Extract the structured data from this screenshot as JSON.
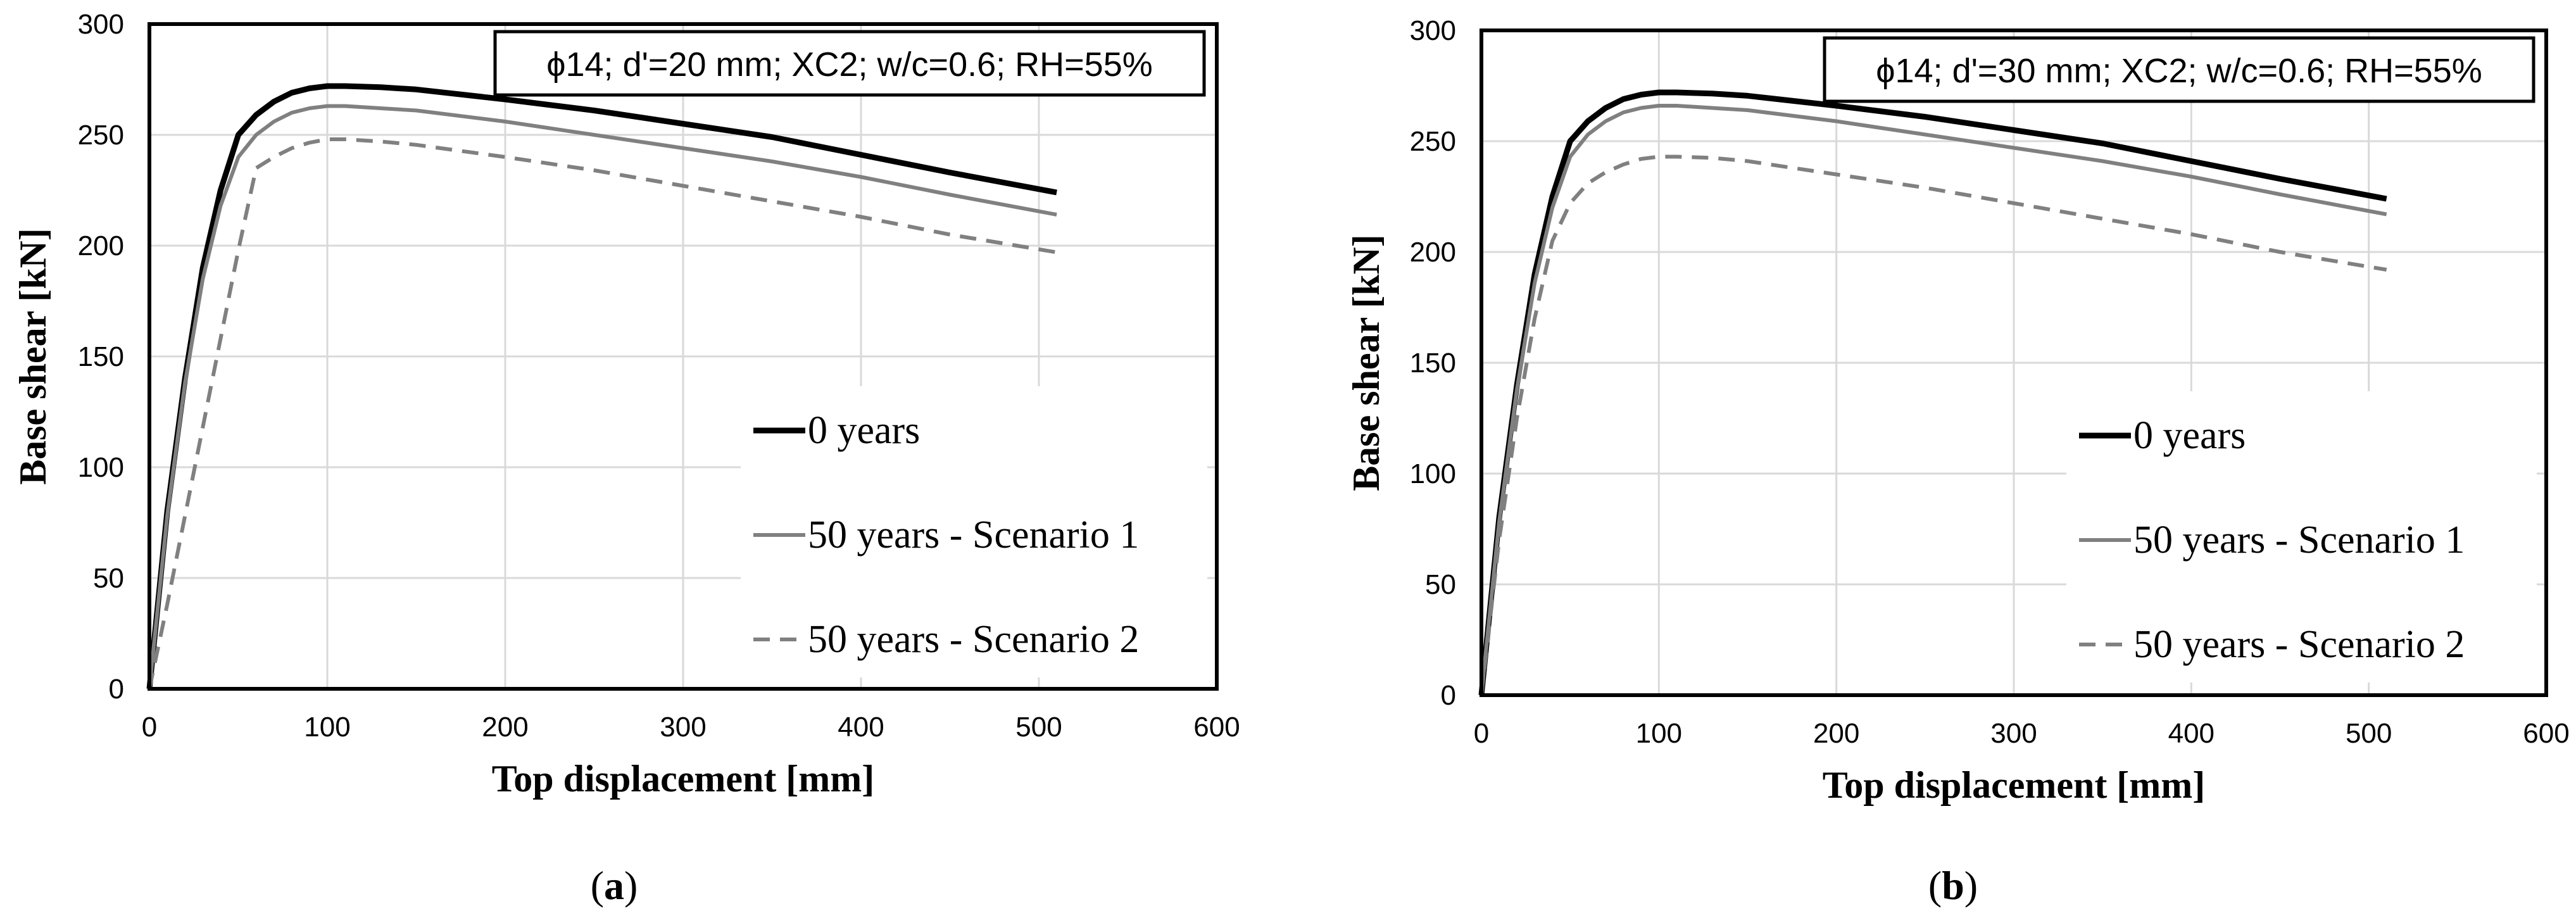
{
  "chart_data": [
    {
      "type": "line",
      "panel": "a",
      "caption_letter": "a",
      "annotation": "ϕ14; d'=20 mm; XC2; w/c=0.6; RH=55%",
      "xlabel": "Top displacement [mm]",
      "ylabel": "Base shear [kN]",
      "xlim": [
        0,
        600
      ],
      "ylim": [
        0,
        300
      ],
      "xticks": [
        0,
        100,
        200,
        300,
        400,
        500,
        600
      ],
      "yticks": [
        0,
        50,
        100,
        150,
        200,
        250,
        300
      ],
      "grid": true,
      "legend_position": "lower-right",
      "series": [
        {
          "name": "0 years",
          "color": "#000000",
          "style": "solid",
          "points": [
            [
              0,
              0
            ],
            [
              10,
              80
            ],
            [
              20,
              140
            ],
            [
              30,
              190
            ],
            [
              40,
              225
            ],
            [
              50,
              250
            ],
            [
              60,
              259
            ],
            [
              70,
              265
            ],
            [
              80,
              269
            ],
            [
              90,
              271
            ],
            [
              100,
              272
            ],
            [
              110,
              272
            ],
            [
              130,
              271.5
            ],
            [
              150,
              270.5
            ],
            [
              200,
              266
            ],
            [
              250,
              261
            ],
            [
              300,
              255
            ],
            [
              350,
              249
            ],
            [
              400,
              241
            ],
            [
              450,
              233
            ],
            [
              510,
              224
            ]
          ]
        },
        {
          "name": "50 years - Scenario 1",
          "color": "#808080",
          "style": "solid",
          "points": [
            [
              0,
              0
            ],
            [
              10,
              78
            ],
            [
              20,
              138
            ],
            [
              30,
              185
            ],
            [
              40,
              218
            ],
            [
              50,
              240
            ],
            [
              60,
              250
            ],
            [
              70,
              256
            ],
            [
              80,
              260
            ],
            [
              90,
              262
            ],
            [
              100,
              263
            ],
            [
              110,
              263
            ],
            [
              130,
              262
            ],
            [
              150,
              261
            ],
            [
              200,
              256
            ],
            [
              250,
              250
            ],
            [
              300,
              244
            ],
            [
              350,
              238
            ],
            [
              400,
              231
            ],
            [
              450,
              223
            ],
            [
              510,
              214
            ]
          ]
        },
        {
          "name": "50 years - Scenario 2",
          "color": "#808080",
          "style": "dashed",
          "points": [
            [
              0,
              0
            ],
            [
              10,
              38
            ],
            [
              20,
              78
            ],
            [
              30,
              118
            ],
            [
              40,
              158
            ],
            [
              50,
              198
            ],
            [
              60,
              235
            ],
            [
              70,
              240
            ],
            [
              80,
              244
            ],
            [
              90,
              246.5
            ],
            [
              100,
              248
            ],
            [
              110,
              248
            ],
            [
              130,
              247
            ],
            [
              150,
              245.5
            ],
            [
              200,
              240
            ],
            [
              250,
              234
            ],
            [
              300,
              227
            ],
            [
              350,
              220
            ],
            [
              400,
              213
            ],
            [
              450,
              205
            ],
            [
              510,
              197
            ]
          ]
        }
      ]
    },
    {
      "type": "line",
      "panel": "b",
      "caption_letter": "b",
      "annotation": "ϕ14; d'=30 mm; XC2; w/c=0.6; RH=55%",
      "xlabel": "Top displacement [mm]",
      "ylabel": "Base shear [kN]",
      "xlim": [
        0,
        600
      ],
      "ylim": [
        0,
        300
      ],
      "xticks": [
        0,
        100,
        200,
        300,
        400,
        500,
        600
      ],
      "yticks": [
        0,
        50,
        100,
        150,
        200,
        250,
        300
      ],
      "grid": true,
      "legend_position": "lower-right",
      "series": [
        {
          "name": "0 years",
          "color": "#000000",
          "style": "solid",
          "points": [
            [
              0,
              0
            ],
            [
              10,
              80
            ],
            [
              20,
              140
            ],
            [
              30,
              190
            ],
            [
              40,
              225
            ],
            [
              50,
              250
            ],
            [
              60,
              259
            ],
            [
              70,
              265
            ],
            [
              80,
              269
            ],
            [
              90,
              271
            ],
            [
              100,
              272
            ],
            [
              110,
              272
            ],
            [
              130,
              271.5
            ],
            [
              150,
              270.5
            ],
            [
              200,
              266
            ],
            [
              250,
              261
            ],
            [
              300,
              255
            ],
            [
              350,
              249
            ],
            [
              400,
              241
            ],
            [
              450,
              233
            ],
            [
              510,
              224
            ]
          ]
        },
        {
          "name": "50 years - Scenario 1",
          "color": "#808080",
          "style": "solid",
          "points": [
            [
              0,
              0
            ],
            [
              10,
              78
            ],
            [
              20,
              138
            ],
            [
              30,
              186
            ],
            [
              40,
              220
            ],
            [
              50,
              243
            ],
            [
              60,
              253
            ],
            [
              70,
              259
            ],
            [
              80,
              263
            ],
            [
              90,
              265
            ],
            [
              100,
              266
            ],
            [
              110,
              266
            ],
            [
              130,
              265
            ],
            [
              150,
              264
            ],
            [
              200,
              259
            ],
            [
              250,
              253
            ],
            [
              300,
              247
            ],
            [
              350,
              241
            ],
            [
              400,
              234
            ],
            [
              450,
              226
            ],
            [
              510,
              217
            ]
          ]
        },
        {
          "name": "50 years - Scenario 2",
          "color": "#808080",
          "style": "dashed",
          "points": [
            [
              0,
              0
            ],
            [
              10,
              70
            ],
            [
              20,
              125
            ],
            [
              30,
              170
            ],
            [
              40,
              205
            ],
            [
              50,
              222
            ],
            [
              60,
              231
            ],
            [
              70,
              236
            ],
            [
              80,
              239.5
            ],
            [
              90,
              242
            ],
            [
              100,
              243
            ],
            [
              110,
              243
            ],
            [
              130,
              242.5
            ],
            [
              150,
              241
            ],
            [
              200,
              235
            ],
            [
              250,
              229
            ],
            [
              300,
              222
            ],
            [
              350,
              215
            ],
            [
              400,
              208
            ],
            [
              450,
              200
            ],
            [
              510,
              192
            ]
          ]
        }
      ]
    }
  ]
}
